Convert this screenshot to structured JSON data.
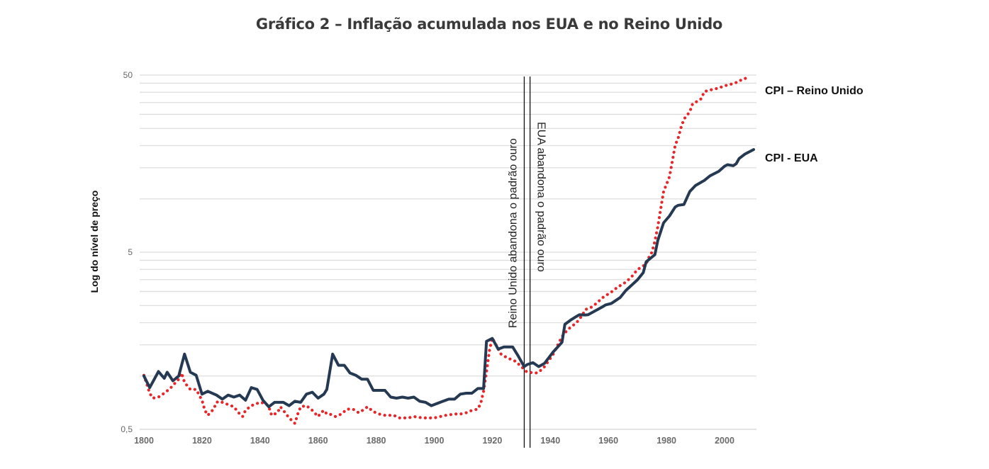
{
  "chart_data": {
    "type": "line",
    "title": "Gráfico 2 – Inflação acumulada nos EUA e no Reino Unido",
    "xlabel": "",
    "ylabel": "Log do nível de preço",
    "yscale": "log",
    "ylim": [
      0.5,
      50
    ],
    "xlim": [
      1800,
      2010
    ],
    "yticks": [
      {
        "value": 50,
        "label": "50"
      },
      {
        "value": 5,
        "label": "5"
      },
      {
        "value": 0.5,
        "label": "0,5"
      }
    ],
    "minor_gridlines": [
      1,
      1.5,
      2,
      2.5,
      3,
      3.5,
      4,
      4.5,
      10,
      15,
      20,
      25,
      30,
      35,
      40,
      45
    ],
    "grid": true,
    "xticks": [
      1800,
      1820,
      1840,
      1860,
      1880,
      1900,
      1920,
      1940,
      1960,
      1980,
      2000
    ],
    "legend_placement": "right",
    "series": [
      {
        "name": "CPI – Reino Unido",
        "style": "dotted",
        "color": "#e8262a",
        "x": [
          1800,
          1802,
          1803,
          1805,
          1807,
          1809,
          1812,
          1813,
          1814,
          1816,
          1818,
          1820,
          1821,
          1822,
          1824,
          1825,
          1826,
          1828,
          1831,
          1833,
          1834,
          1835,
          1837,
          1840,
          1842,
          1843,
          1844,
          1846,
          1847,
          1848,
          1850,
          1852,
          1853,
          1854,
          1856,
          1858,
          1860,
          1861,
          1862,
          1863,
          1864,
          1866,
          1868,
          1870,
          1872,
          1874,
          1876,
          1877,
          1879,
          1881,
          1883,
          1886,
          1888,
          1891,
          1893,
          1896,
          1898,
          1900,
          1902,
          1904,
          1907,
          1909,
          1911,
          1913,
          1915,
          1916,
          1917,
          1918,
          1919,
          1920,
          1921,
          1923,
          1925,
          1928,
          1930,
          1932,
          1935,
          1936,
          1938,
          1941,
          1944,
          1946,
          1949,
          1951,
          1952,
          1954,
          1956,
          1958,
          1961,
          1963,
          1966,
          1968,
          1970,
          1973,
          1974,
          1975,
          1976,
          1977,
          1978,
          1979,
          1981,
          1982,
          1983,
          1984,
          1985,
          1986,
          1988,
          1989,
          1991,
          1992,
          1993,
          1995,
          1996,
          1998,
          2000,
          2002,
          2003,
          2005,
          2006,
          2008
        ],
        "values": [
          1.01,
          0.8,
          0.75,
          0.76,
          0.8,
          0.85,
          0.96,
          1.04,
          0.92,
          0.84,
          0.84,
          0.73,
          0.64,
          0.6,
          0.65,
          0.71,
          0.72,
          0.7,
          0.67,
          0.61,
          0.59,
          0.64,
          0.68,
          0.71,
          0.7,
          0.67,
          0.6,
          0.62,
          0.67,
          0.64,
          0.58,
          0.54,
          0.61,
          0.67,
          0.68,
          0.64,
          0.59,
          0.62,
          0.64,
          0.61,
          0.61,
          0.59,
          0.61,
          0.65,
          0.65,
          0.62,
          0.65,
          0.67,
          0.63,
          0.61,
          0.6,
          0.6,
          0.58,
          0.58,
          0.59,
          0.58,
          0.58,
          0.58,
          0.59,
          0.6,
          0.61,
          0.61,
          0.62,
          0.64,
          0.65,
          0.7,
          0.82,
          1.05,
          1.39,
          1.64,
          1.53,
          1.33,
          1.27,
          1.21,
          1.13,
          1.05,
          1.04,
          1.05,
          1.13,
          1.33,
          1.67,
          1.83,
          2.0,
          2.2,
          2.37,
          2.44,
          2.58,
          2.77,
          2.98,
          3.16,
          3.39,
          3.64,
          3.99,
          4.29,
          4.7,
          5.0,
          5.78,
          6.95,
          8.76,
          11.0,
          13.3,
          16.3,
          20.1,
          22.0,
          25.3,
          28.2,
          31.0,
          34.5,
          35.8,
          36.8,
          40.3,
          41.2,
          41.5,
          42.3,
          43.5,
          44.3,
          44.8,
          46.0,
          47.4,
          48.3
        ]
      },
      {
        "name": "CPI - EUA",
        "style": "solid",
        "color": "#253a52",
        "x": [
          1800,
          1802,
          1805,
          1807,
          1808,
          1810,
          1812,
          1814,
          1816,
          1818,
          1820,
          1822,
          1825,
          1827,
          1829,
          1831,
          1833,
          1835,
          1837,
          1839,
          1841,
          1843,
          1845,
          1848,
          1850,
          1852,
          1854,
          1856,
          1858,
          1860,
          1862,
          1863,
          1865,
          1867,
          1869,
          1871,
          1873,
          1875,
          1877,
          1879,
          1883,
          1885,
          1887,
          1889,
          1891,
          1893,
          1895,
          1897,
          1899,
          1901,
          1903,
          1905,
          1907,
          1909,
          1911,
          1913,
          1915,
          1917,
          1918,
          1920,
          1922,
          1924,
          1927,
          1929,
          1931,
          1932,
          1934,
          1936,
          1938,
          1941,
          1944,
          1945,
          1947,
          1949,
          1950,
          1952,
          1953,
          1955,
          1958,
          1959,
          1961,
          1964,
          1966,
          1970,
          1972,
          1973,
          1976,
          1977,
          1979,
          1981,
          1983,
          1984,
          1986,
          1988,
          1990,
          1993,
          1995,
          1998,
          2000,
          2001,
          2003,
          2004,
          2005,
          2007,
          2010
        ],
        "values": [
          1.0,
          0.86,
          1.06,
          0.97,
          1.05,
          0.94,
          1.0,
          1.33,
          1.05,
          1.01,
          0.79,
          0.82,
          0.78,
          0.74,
          0.78,
          0.76,
          0.78,
          0.73,
          0.86,
          0.84,
          0.73,
          0.67,
          0.71,
          0.71,
          0.68,
          0.72,
          0.71,
          0.79,
          0.81,
          0.75,
          0.79,
          0.84,
          1.33,
          1.15,
          1.15,
          1.04,
          1.01,
          0.96,
          0.96,
          0.83,
          0.83,
          0.76,
          0.75,
          0.76,
          0.75,
          0.76,
          0.72,
          0.71,
          0.68,
          0.7,
          0.72,
          0.74,
          0.74,
          0.79,
          0.8,
          0.8,
          0.85,
          0.85,
          1.57,
          1.63,
          1.42,
          1.46,
          1.46,
          1.29,
          1.13,
          1.16,
          1.19,
          1.13,
          1.18,
          1.37,
          1.55,
          1.96,
          2.07,
          2.17,
          2.22,
          2.21,
          2.22,
          2.31,
          2.46,
          2.52,
          2.57,
          2.77,
          3.04,
          3.49,
          3.83,
          4.41,
          4.84,
          5.82,
          7.33,
          8.0,
          9.0,
          9.2,
          9.3,
          11.0,
          11.9,
          12.7,
          13.5,
          14.3,
          15.3,
          15.6,
          15.4,
          15.8,
          16.9,
          17.9,
          19.0
        ]
      }
    ],
    "annotations": [
      {
        "year": 1931,
        "text": "Reino Unido abandona o padrão ouro",
        "orientation": "bottom-to-top"
      },
      {
        "year": 1933,
        "text": "EUA abandona o padrão ouro",
        "orientation": "top-to-bottom"
      }
    ]
  }
}
